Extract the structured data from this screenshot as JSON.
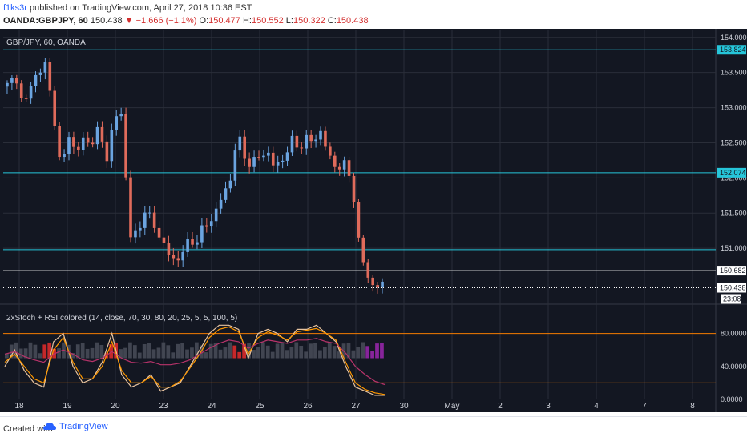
{
  "header": {
    "user": "f1ks3r",
    "published_text": "published on TradingView.com, April 27, 2018 10:36 EST",
    "symbol": "OANDA:GBPJPY, 60",
    "price": "150.438",
    "change": "−1.666 (−1.1%)",
    "open_label": "O:",
    "open": "150.477",
    "high_label": "H:",
    "high": "150.552",
    "low_label": "L:",
    "low": "150.322",
    "close_label": "C:",
    "close": "150.438"
  },
  "footer": {
    "created_with": "Created with",
    "brand": "TradingView"
  },
  "colors": {
    "background": "#131722",
    "grid": "#2a2e39",
    "up": "#6ba4e0",
    "down": "#e06b5b",
    "level_line": "#26c6da",
    "band_line": "#f57c00",
    "stoch1": "#e8c4a0",
    "stoch2": "#ff9800",
    "rsi": "#b8336a"
  },
  "chart_data": [
    {
      "type": "candlestick",
      "title": "GBP/JPY, 60, OANDA",
      "ylim": [
        150.25,
        154.1
      ],
      "yticks": [
        "154.000",
        "153.500",
        "153.000",
        "152.500",
        "152.000",
        "151.500",
        "151.000"
      ],
      "xticks": [
        "18",
        "19",
        "20",
        "23",
        "24",
        "25",
        "26",
        "27",
        "30",
        "May",
        "2",
        "3",
        "4",
        "7",
        "8"
      ],
      "grid": true,
      "horizontal_levels": [
        {
          "label": "153.824",
          "value": 153.824,
          "color": "#26c6da"
        },
        {
          "label": "152.074",
          "value": 152.074,
          "color": "#26c6da"
        },
        {
          "value": 150.98,
          "color": "#26c6da"
        },
        {
          "label": "150.682",
          "value": 150.682,
          "color": "#ffffff"
        }
      ],
      "last_price": {
        "label": "150.438",
        "value": 150.438,
        "countdown": "23:08"
      },
      "price_path": [
        153.3,
        153.45,
        153.1,
        153.2,
        153.6,
        153.55,
        153.0,
        152.1,
        152.6,
        152.4,
        152.5,
        152.55,
        152.65,
        152.3,
        152.85,
        152.9,
        151.2,
        151.15,
        151.6,
        151.3,
        151.2,
        150.9,
        150.8,
        151.0,
        151.05,
        151.2,
        151.3,
        151.5,
        151.7,
        151.9,
        152.6,
        152.3,
        152.2,
        152.3,
        152.4,
        152.1,
        152.3,
        152.5,
        152.45,
        152.55,
        152.5,
        152.7,
        152.25,
        152.2,
        152.15,
        152.0,
        151.0,
        150.6,
        150.48,
        150.438
      ]
    },
    {
      "type": "line",
      "title": "2xStoch + RSI colored (14, close, 70, 30, 80, 20, 25, 5, 5, 100, 5)",
      "ylim": [
        0,
        100
      ],
      "yticks": [
        "80.0000",
        "40.0000",
        "0.0000"
      ],
      "bands": [
        80,
        20
      ],
      "series": [
        {
          "values": [
            40,
            60,
            35,
            20,
            15,
            70,
            80,
            40,
            20,
            25,
            45,
            80,
            30,
            15,
            20,
            30,
            10,
            15,
            20,
            40,
            60,
            80,
            90,
            90,
            85,
            50,
            80,
            85,
            80,
            70,
            85,
            85,
            90,
            80,
            70,
            40,
            15,
            10,
            5,
            5
          ]
        },
        {
          "values": [
            45,
            55,
            40,
            25,
            20,
            60,
            75,
            45,
            25,
            25,
            40,
            70,
            35,
            20,
            20,
            28,
            15,
            15,
            22,
            38,
            55,
            75,
            85,
            88,
            82,
            55,
            75,
            82,
            78,
            72,
            82,
            84,
            86,
            80,
            72,
            45,
            20,
            12,
            8,
            6
          ]
        },
        {
          "values": [
            55,
            58,
            52,
            48,
            45,
            55,
            60,
            55,
            48,
            46,
            50,
            58,
            50,
            45,
            44,
            46,
            42,
            42,
            44,
            48,
            55,
            62,
            68,
            72,
            70,
            62,
            68,
            72,
            70,
            68,
            72,
            72,
            74,
            70,
            68,
            56,
            40,
            30,
            22,
            18
          ]
        }
      ]
    }
  ]
}
